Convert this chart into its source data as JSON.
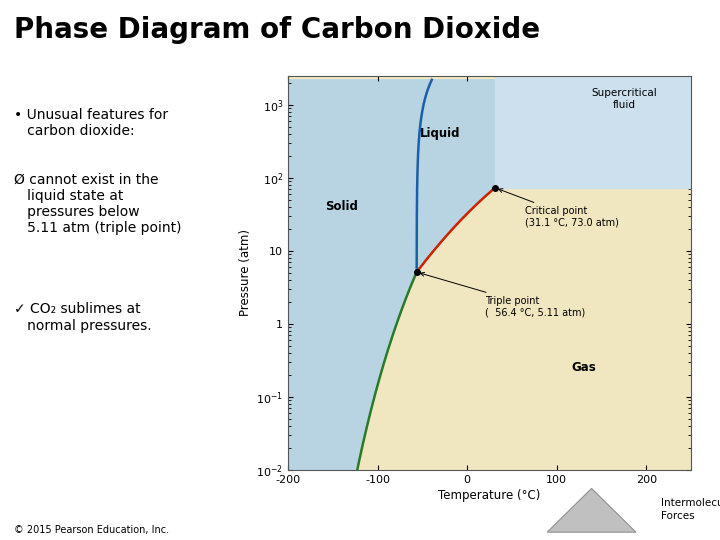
{
  "title": "Phase Diagram of Carbon Dioxide",
  "bg_color": "#f0f0f0",
  "diagram_bg": "#f0e6c0",
  "solid_color": "#b8d4e3",
  "liquid_color": "#b8d4e3",
  "gas_color": "#f0e6c0",
  "supercritical_color": "#cde0ee",
  "xlabel": "Temperature (°C)",
  "ylabel": "Pressure (atm)",
  "triple_T": -56.4,
  "triple_P": 5.11,
  "critical_T": 31.1,
  "critical_P": 73.0,
  "label_solid": "Solid",
  "label_liquid": "Liquid",
  "label_gas": "Gas",
  "label_supercritical": "Supercritical\nfluid",
  "label_triple": "Triple point\n(  56.4 °C, 5.11 atm)",
  "label_critical": "Critical point\n(31.1 °C, 73.0 atm)",
  "copyright": "© 2015 Pearson Education, Inc.",
  "corner_label": "Intermolecular\nForces",
  "bullet1_sym": "•",
  "bullet1_text": "Unusual features for\ncarbon dioxide:",
  "bullet2_sym": "Ø",
  "bullet2_text": "cannot exist in the\nliquid state at\npressures below\n5.11 atm (triple point)",
  "bullet3_sym": "✓",
  "bullet3_text": "CO₂ sublimes at\nnormal pressures.",
  "green_line": "#2a7a2a",
  "blue_line": "#1a5fa8",
  "red_line": "#cc2200"
}
